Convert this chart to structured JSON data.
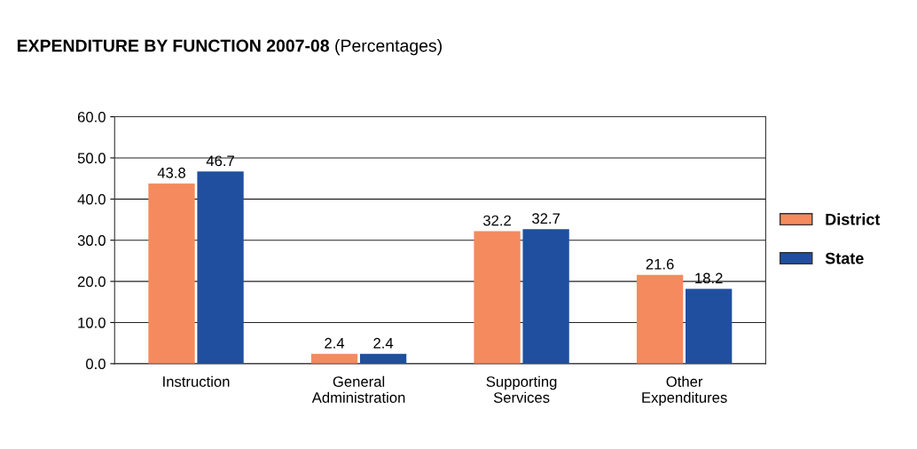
{
  "chart_data": {
    "type": "bar",
    "title": "EXPENDITURE BY FUNCTION 2007-08",
    "subtitle": "(Percentages)",
    "categories": [
      "Instruction",
      "General\nAdministration",
      "Supporting\nServices",
      "Other\nExpenditures"
    ],
    "series": [
      {
        "name": "District",
        "color": "#f58a5e",
        "values": [
          43.8,
          2.4,
          32.2,
          21.6
        ]
      },
      {
        "name": "State",
        "color": "#1f4f9e",
        "values": [
          46.7,
          2.4,
          32.7,
          18.2
        ]
      }
    ],
    "ylim": [
      0,
      60
    ],
    "yticks": [
      {
        "value": 0,
        "label": "0.0"
      },
      {
        "value": 10,
        "label": "10.0"
      },
      {
        "value": 20,
        "label": "20.0"
      },
      {
        "value": 30,
        "label": "30.0"
      },
      {
        "value": 40,
        "label": "40.0"
      },
      {
        "value": 50,
        "label": "50.0"
      },
      {
        "value": 60,
        "label": "60.0"
      }
    ],
    "grid": "y",
    "legend": "right",
    "data_labels": true
  }
}
